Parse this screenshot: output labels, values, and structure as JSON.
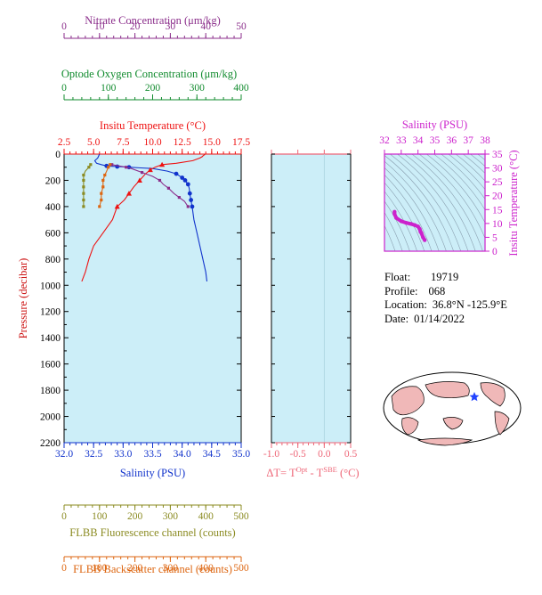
{
  "colors": {
    "nitrate": "#8b2e8b",
    "oxygen": "#118b2e",
    "temperature": "#ee1111",
    "salinity": "#1133cc",
    "pressure": "#cc1111",
    "fluorescence": "#8b8b22",
    "backscatter": "#dd6611",
    "dt": "#ee6677",
    "inset": "#cc22cc",
    "plot_bg": "#cceef8"
  },
  "float_info": {
    "float_label": "Float:",
    "float_value": "19719",
    "profile_label": "Profile:",
    "profile_value": "068",
    "location_label": "Location:",
    "location_value": "36.8°N  -125.9°E",
    "date_label": "Date:",
    "date_value": "01/14/2022"
  },
  "chart_data": [
    {
      "type": "line",
      "title": "",
      "ylabel": "Pressure (decibar)",
      "ylim": [
        2200,
        0
      ],
      "yticks": [
        "0",
        "200",
        "400",
        "600",
        "800",
        "1000",
        "1200",
        "1400",
        "1600",
        "1800",
        "2000",
        "2200"
      ],
      "axes": {
        "salinity": {
          "label": "Salinity (PSU)",
          "range": [
            32.0,
            35.0
          ],
          "ticks": [
            "32.0",
            "32.5",
            "33.0",
            "33.5",
            "34.0",
            "34.5",
            "35.0"
          ],
          "position": "bottom"
        },
        "temperature": {
          "label": "Insitu Temperature (°C)",
          "range": [
            2.5,
            17.5
          ],
          "ticks": [
            "2.5",
            "5.0",
            "7.5",
            "10.0",
            "12.5",
            "15.0",
            "17.5"
          ],
          "position": "top"
        },
        "oxygen": {
          "label": "Optode Oxygen Concentration (μm/kg)",
          "range": [
            0,
            400
          ],
          "ticks": [
            "0",
            "100",
            "200",
            "300",
            "400"
          ],
          "position": "top"
        },
        "nitrate": {
          "label": "Nitrate Concentration (μm/kg)",
          "range": [
            0,
            50
          ],
          "ticks": [
            "0",
            "10",
            "20",
            "30",
            "40",
            "50"
          ],
          "position": "top"
        },
        "fluorescence": {
          "label": "FLBB Fluorescence channel (counts)",
          "range": [
            0,
            500
          ],
          "ticks": [
            "0",
            "100",
            "200",
            "300",
            "400",
            "500"
          ],
          "position": "bottom"
        },
        "backscatter": {
          "label": "FLBB Backscatter channel (counts)",
          "range": [
            0,
            500
          ],
          "ticks": [
            "0",
            "100",
            "200",
            "300",
            "400",
            "500"
          ],
          "position": "bottom"
        }
      },
      "series": [
        {
          "name": "salinity",
          "axis": "salinity",
          "pressure": [
            0,
            30,
            50,
            70,
            80,
            90,
            95,
            100,
            105,
            110,
            130,
            150,
            180,
            200,
            230,
            260,
            300,
            330,
            350,
            380,
            400,
            500,
            600,
            700,
            800,
            900,
            970
          ],
          "values": [
            32.6,
            32.57,
            32.52,
            32.55,
            32.63,
            32.72,
            32.9,
            33.1,
            33.3,
            33.5,
            33.75,
            33.9,
            34.0,
            34.05,
            34.1,
            34.12,
            34.13,
            34.14,
            34.15,
            34.16,
            34.17,
            34.2,
            34.25,
            34.3,
            34.35,
            34.4,
            34.42
          ]
        },
        {
          "name": "temperature",
          "axis": "temperature",
          "pressure": [
            0,
            5,
            10,
            20,
            30,
            50,
            70,
            80,
            100,
            120,
            150,
            200,
            250,
            300,
            350,
            400,
            450,
            500,
            600,
            700,
            800,
            900,
            970
          ],
          "values": [
            14.4,
            14.4,
            14.3,
            14.2,
            14.0,
            13.4,
            12.0,
            10.8,
            10.2,
            9.8,
            9.4,
            8.9,
            8.4,
            8.0,
            7.6,
            7.0,
            6.8,
            6.6,
            5.8,
            5.0,
            4.6,
            4.3,
            4.0
          ]
        },
        {
          "name": "oxygen",
          "axis": "oxygen",
          "pressure": [],
          "values": []
        },
        {
          "name": "nitrate",
          "axis": "nitrate",
          "pressure": [
            80,
            100,
            110,
            140,
            170,
            200,
            230,
            260,
            300,
            330,
            360,
            400
          ],
          "values": [
            13.5,
            17.5,
            19,
            22,
            25,
            27,
            28,
            29.5,
            31,
            32.5,
            34,
            35
          ]
        },
        {
          "name": "fluorescence",
          "axis": "fluorescence",
          "pressure": [
            80,
            100,
            130,
            160,
            200,
            250,
            300,
            350,
            400
          ],
          "values": [
            75,
            70,
            60,
            55,
            55,
            55,
            55,
            55,
            55
          ]
        },
        {
          "name": "backscatter",
          "axis": "backscatter",
          "pressure": [
            80,
            100,
            130,
            160,
            200,
            250,
            300,
            350,
            400
          ],
          "values": [
            130,
            125,
            120,
            115,
            110,
            110,
            105,
            105,
            100
          ]
        }
      ]
    },
    {
      "type": "line",
      "title": "",
      "xlabel_prefix": "ΔT= T",
      "xlabel_sup1": "Opt",
      "xlabel_mid": " - T",
      "xlabel_sup2": "SBE",
      "xlabel_suffix": " (°C)",
      "xlim": [
        -1.0,
        0.5
      ],
      "xticks": [
        "-1.0",
        "-0.5",
        "0.0",
        "0.5"
      ],
      "ylim": [
        2200,
        0
      ],
      "series": []
    },
    {
      "type": "scatter",
      "title": "",
      "xlabel": "Salinity (PSU)",
      "ylabel": "Insitu Temperature (°C)",
      "xlim": [
        32,
        38
      ],
      "ylim": [
        0,
        35
      ],
      "xticks": [
        "32",
        "33",
        "34",
        "35",
        "36",
        "37",
        "38"
      ],
      "yticks": [
        "0",
        "5",
        "10",
        "15",
        "20",
        "25",
        "30",
        "35"
      ],
      "series": [
        {
          "name": "T-S",
          "salinity": [
            32.6,
            32.6,
            32.7,
            33.0,
            33.3,
            33.6,
            33.8,
            34.0,
            34.1,
            34.15,
            34.2,
            34.3,
            34.4
          ],
          "temperature": [
            14.2,
            13.4,
            12.0,
            10.8,
            10.2,
            9.8,
            9.4,
            8.9,
            8.0,
            7.0,
            6.6,
            5.0,
            4.0
          ]
        }
      ]
    }
  ]
}
